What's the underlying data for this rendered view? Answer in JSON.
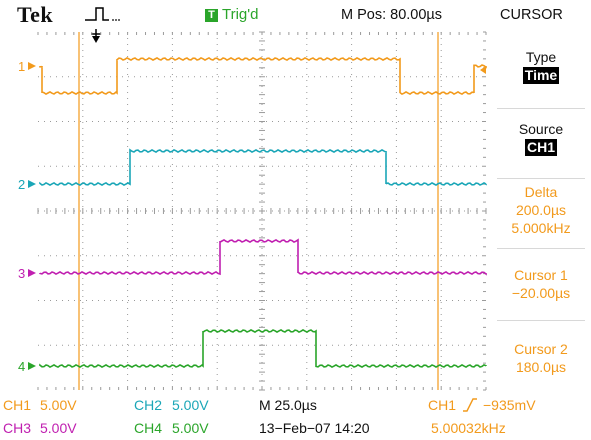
{
  "header": {
    "brand": "Tek",
    "trigger_state": "Trig'd",
    "trigger_state_icon_letter": "T",
    "horizontal_position": "M Pos: 80.00µs",
    "menu_title": "CURSOR"
  },
  "side_menu": {
    "type_label": "Type",
    "type_value": "Time",
    "source_label": "Source",
    "source_value": "CH1",
    "delta_label": "Delta",
    "delta_time": "200.0µs",
    "delta_freq": "5.000kHz",
    "cursor1_label": "Cursor 1",
    "cursor1_value": "−20.00µs",
    "cursor2_label": "Cursor 2",
    "cursor2_value": "180.0µs"
  },
  "channel_markers": [
    "1",
    "2",
    "3",
    "4"
  ],
  "readout": {
    "ch1_label": "CH1",
    "ch1_scale": "5.00V",
    "ch2_label": "CH2",
    "ch2_scale": "5.00V",
    "ch3_label": "CH3",
    "ch3_scale": "5.00V",
    "ch4_label": "CH4",
    "ch4_scale": "5.00V",
    "timebase": "M 25.0µs",
    "date_time": "13−Feb−07 14:20",
    "trigger_source": "CH1",
    "trigger_level": "−935mV",
    "trigger_frequency": "5.00032kHz"
  },
  "colors": {
    "ch1": "#f29a1c",
    "ch2": "#1aa6b7",
    "ch3": "#c01fb0",
    "ch4": "#2aa52a",
    "cursor": "#f29a1c",
    "graticule": "#9a9a9a"
  },
  "icons": {
    "trigger_type": "rising-edge-pulse-icon",
    "trigger_position": "down-arrow-icon",
    "trigger_level": "rising-slope-icon"
  }
}
